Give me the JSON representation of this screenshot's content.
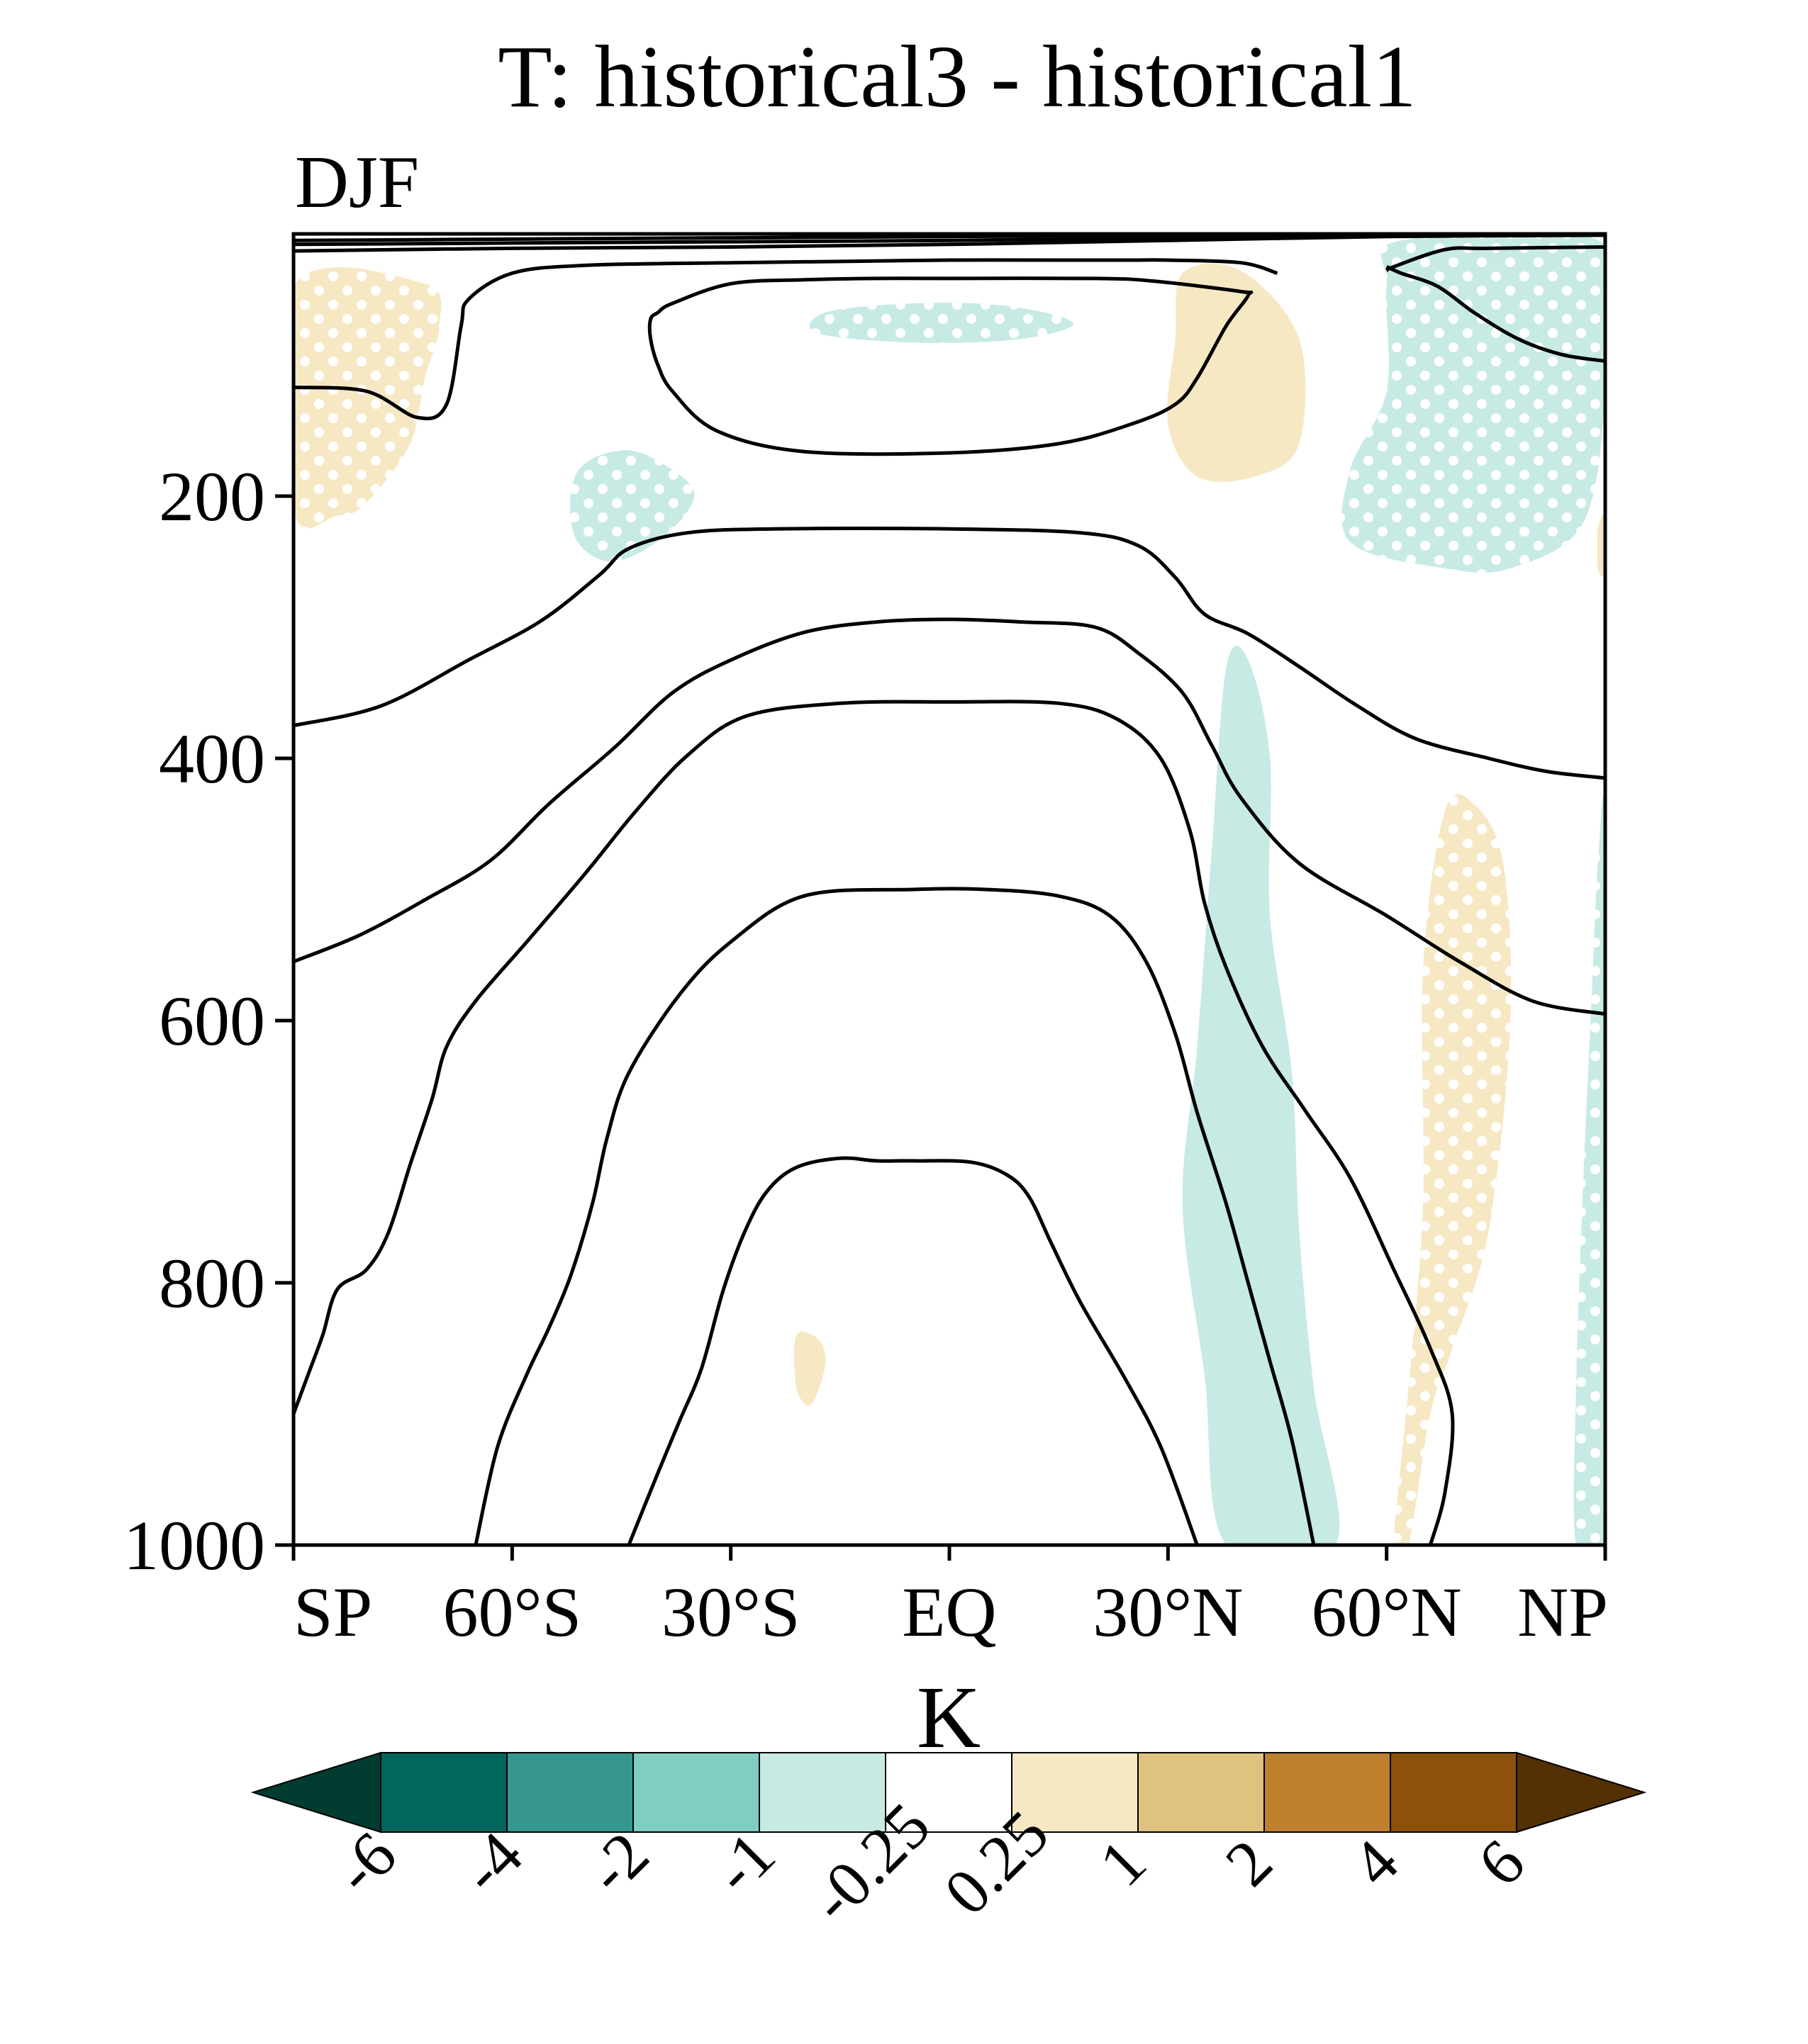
{
  "chart_data": {
    "type": "contour",
    "title": "T: historical3 - historical1",
    "subtitle": "DJF",
    "xlabel": "",
    "ylabel": "",
    "x_ticks": [
      {
        "value": -90,
        "label": "SP"
      },
      {
        "value": -60,
        "label": "60°S"
      },
      {
        "value": -30,
        "label": "30°S"
      },
      {
        "value": 0,
        "label": "EQ"
      },
      {
        "value": 30,
        "label": "30°N"
      },
      {
        "value": 60,
        "label": "60°N"
      },
      {
        "value": 90,
        "label": "NP"
      }
    ],
    "xlim": [
      -90,
      90
    ],
    "y_ticks": [
      {
        "value": 200,
        "label": "200"
      },
      {
        "value": 400,
        "label": "400"
      },
      {
        "value": 600,
        "label": "600"
      },
      {
        "value": 800,
        "label": "800"
      },
      {
        "value": 1000,
        "label": "1000"
      }
    ],
    "ylim": [
      0,
      1000
    ],
    "y_inverted": true,
    "grid": false,
    "colorbar": {
      "label": "K",
      "levels": [
        "-6",
        "-4",
        "-2",
        "-1",
        "-0.25",
        "0.25",
        "1",
        "2",
        "4",
        "6"
      ],
      "colors": [
        "#003c30",
        "#01665e",
        "#35978f",
        "#80cdc1",
        "#c7eae5",
        "#ffffff",
        "#f6e8c3",
        "#dfc27d",
        "#bf812d",
        "#8c510a",
        "#543005"
      ]
    },
    "shaded_regions": [
      {
        "color": "#f6e8c3",
        "stippled": true,
        "points": [
          [
            -90,
            40
          ],
          [
            -72,
            38
          ],
          [
            -70,
            70
          ],
          [
            -72,
            110
          ],
          [
            -74,
            160
          ],
          [
            -80,
            205
          ],
          [
            -84,
            215
          ],
          [
            -90,
            210
          ]
        ]
      },
      {
        "color": "#c7eae5",
        "stippled": true,
        "points": [
          [
            -50,
            175
          ],
          [
            -44,
            165
          ],
          [
            -38,
            180
          ],
          [
            -35,
            200
          ],
          [
            -39,
            230
          ],
          [
            -46,
            250
          ],
          [
            -51,
            235
          ],
          [
            -52,
            200
          ]
        ]
      },
      {
        "color": "#c7eae5",
        "stippled": true,
        "points": [
          [
            -17,
            60
          ],
          [
            -5,
            53
          ],
          [
            8,
            55
          ],
          [
            17,
            68
          ],
          [
            10,
            80
          ],
          [
            -4,
            83
          ],
          [
            -18,
            76
          ]
        ]
      },
      {
        "color": "#f6e8c3",
        "stippled": false,
        "points": [
          [
            32,
            30
          ],
          [
            40,
            28
          ],
          [
            48,
            80
          ],
          [
            48,
            160
          ],
          [
            42,
            185
          ],
          [
            34,
            185
          ],
          [
            30,
            145
          ],
          [
            31,
            80
          ]
        ]
      },
      {
        "color": "#c7eae5",
        "stippled": true,
        "points": [
          [
            62,
            5
          ],
          [
            90,
            8
          ],
          [
            90,
            120
          ],
          [
            87,
            220
          ],
          [
            77,
            255
          ],
          [
            68,
            255
          ],
          [
            55,
            235
          ],
          [
            55,
            180
          ],
          [
            60,
            120
          ],
          [
            60,
            40
          ]
        ]
      },
      {
        "color": "#f6e8c3",
        "stippled": false,
        "points": [
          [
            89,
            225
          ],
          [
            90,
            215
          ],
          [
            90,
            258
          ],
          [
            89,
            255
          ]
        ]
      },
      {
        "color": "#c7eae5",
        "stippled": false,
        "points": [
          [
            38,
            330
          ],
          [
            41,
            325
          ],
          [
            44,
            400
          ],
          [
            44,
            520
          ],
          [
            47,
            640
          ],
          [
            48,
            760
          ],
          [
            50,
            880
          ],
          [
            53,
            1000
          ],
          [
            38,
            1000
          ],
          [
            35,
            870
          ],
          [
            32,
            740
          ],
          [
            34,
            620
          ],
          [
            36,
            470
          ]
        ]
      },
      {
        "color": "#f6e8c3",
        "stippled": true,
        "points": [
          [
            68,
            440
          ],
          [
            72,
            435
          ],
          [
            76,
            480
          ],
          [
            77,
            600
          ],
          [
            74,
            760
          ],
          [
            69,
            850
          ],
          [
            66,
            900
          ],
          [
            63,
            1000
          ],
          [
            61,
            1000
          ],
          [
            63,
            880
          ],
          [
            65,
            740
          ],
          [
            65,
            560
          ]
        ]
      },
      {
        "color": "#c7eae5",
        "stippled": true,
        "points": [
          [
            89,
            480
          ],
          [
            90,
            470
          ],
          [
            90,
            1000
          ],
          [
            86,
            1000
          ],
          [
            86,
            880
          ],
          [
            87,
            720
          ],
          [
            88,
            600
          ]
        ]
      },
      {
        "color": "#f6e8c3",
        "stippled": false,
        "points": [
          [
            -21,
            840
          ],
          [
            -18,
            843
          ],
          [
            -17,
            862
          ],
          [
            -19,
            893
          ],
          [
            -21,
            880
          ]
        ]
      }
    ],
    "contour_lines": [
      {
        "points": [
          [
            -90,
            5
          ],
          [
            -60,
            4
          ],
          [
            -30,
            3
          ],
          [
            0,
            2
          ],
          [
            30,
            1
          ],
          [
            60,
            0.5
          ],
          [
            90,
            0.2
          ]
        ]
      },
      {
        "points": [
          [
            -90,
            8
          ],
          [
            -60,
            7
          ],
          [
            -30,
            6
          ],
          [
            0,
            5
          ],
          [
            30,
            3
          ],
          [
            60,
            1
          ],
          [
            90,
            0.5
          ]
        ]
      },
      {
        "points": [
          [
            -90,
            13
          ],
          [
            -60,
            11
          ],
          [
            -30,
            10
          ],
          [
            0,
            8
          ],
          [
            30,
            5
          ],
          [
            60,
            2
          ],
          [
            90,
            1
          ]
        ]
      },
      {
        "points": [
          [
            -90,
            117
          ],
          [
            -80,
            120
          ],
          [
            -73,
            140
          ],
          [
            -69,
            130
          ],
          [
            -67,
            70
          ],
          [
            -66,
            50
          ],
          [
            -60,
            30
          ],
          [
            -50,
            24
          ],
          [
            -30,
            22
          ],
          [
            -15,
            21
          ],
          [
            0,
            20
          ],
          [
            15,
            20
          ],
          [
            25,
            20
          ],
          [
            30,
            20
          ],
          [
            40,
            22
          ],
          [
            45,
            30
          ]
        ]
      },
      {
        "points": [
          [
            -41,
            65
          ],
          [
            -40,
            60
          ],
          [
            -38,
            53
          ],
          [
            -30,
            38
          ],
          [
            -20,
            35
          ],
          [
            -10,
            34
          ],
          [
            0,
            34
          ],
          [
            20,
            34
          ],
          [
            28,
            36
          ],
          [
            40,
            44
          ],
          [
            41,
            47
          ],
          [
            38,
            70
          ],
          [
            34,
            110
          ],
          [
            31,
            130
          ],
          [
            25,
            145
          ],
          [
            15,
            160
          ],
          [
            0,
            167
          ],
          [
            -20,
            166
          ],
          [
            -32,
            150
          ],
          [
            -38,
            120
          ],
          [
            -40,
            100
          ],
          [
            -41,
            80
          ],
          [
            -41,
            65
          ]
        ]
      },
      {
        "points": [
          [
            60,
            25
          ],
          [
            62,
            30
          ],
          [
            67,
            40
          ],
          [
            72,
            60
          ],
          [
            78,
            80
          ],
          [
            84,
            92
          ],
          [
            90,
            97
          ]
        ]
      },
      {
        "points": [
          [
            90,
            10
          ],
          [
            74,
            11
          ],
          [
            68,
            12
          ],
          [
            61,
            25
          ],
          [
            60,
            28
          ]
        ]
      },
      {
        "points": [
          [
            -90,
            375
          ],
          [
            -78,
            360
          ],
          [
            -66,
            325
          ],
          [
            -56,
            295
          ],
          [
            -48,
            260
          ],
          [
            -44,
            240
          ],
          [
            -36,
            228
          ],
          [
            -24,
            225
          ],
          [
            0,
            225
          ],
          [
            18,
            228
          ],
          [
            26,
            238
          ],
          [
            31,
            262
          ],
          [
            35,
            290
          ],
          [
            41,
            305
          ],
          [
            48,
            330
          ],
          [
            56,
            360
          ],
          [
            64,
            385
          ],
          [
            74,
            400
          ],
          [
            82,
            410
          ],
          [
            90,
            415
          ]
        ]
      },
      {
        "points": [
          [
            -90,
            555
          ],
          [
            -81,
            535
          ],
          [
            -72,
            508
          ],
          [
            -63,
            478
          ],
          [
            -55,
            435
          ],
          [
            -46,
            392
          ],
          [
            -38,
            350
          ],
          [
            -30,
            325
          ],
          [
            -20,
            304
          ],
          [
            -10,
            296
          ],
          [
            0,
            294
          ],
          [
            10,
            296
          ],
          [
            20,
            300
          ],
          [
            26,
            320
          ],
          [
            32,
            350
          ],
          [
            36,
            390
          ],
          [
            40,
            430
          ],
          [
            48,
            480
          ],
          [
            60,
            520
          ],
          [
            70,
            555
          ],
          [
            80,
            585
          ],
          [
            90,
            595
          ]
        ]
      },
      {
        "points": [
          [
            -90,
            900
          ],
          [
            -88,
            870
          ],
          [
            -86,
            840
          ],
          [
            -84,
            805
          ],
          [
            -80,
            790
          ],
          [
            -77,
            762
          ],
          [
            -74,
            710
          ],
          [
            -71,
            660
          ],
          [
            -69,
            620
          ],
          [
            -65,
            585
          ],
          [
            -58,
            540
          ],
          [
            -50,
            488
          ],
          [
            -43,
            440
          ],
          [
            -36,
            398
          ],
          [
            -28,
            368
          ],
          [
            -15,
            358
          ],
          [
            0,
            357
          ],
          [
            15,
            358
          ],
          [
            23,
            370
          ],
          [
            29,
            400
          ],
          [
            33,
            455
          ],
          [
            35,
            510
          ],
          [
            38,
            560
          ],
          [
            43,
            620
          ],
          [
            49,
            670
          ],
          [
            55,
            720
          ],
          [
            61,
            790
          ],
          [
            66,
            850
          ],
          [
            69,
            900
          ],
          [
            68,
            960
          ],
          [
            66,
            1000
          ]
        ]
      },
      {
        "points": [
          [
            -65,
            1000
          ],
          [
            -62,
            925
          ],
          [
            -58,
            870
          ],
          [
            -55,
            835
          ],
          [
            -52,
            795
          ],
          [
            -49,
            740
          ],
          [
            -47,
            690
          ],
          [
            -44,
            640
          ],
          [
            -37,
            580
          ],
          [
            -30,
            540
          ],
          [
            -20,
            505
          ],
          [
            -5,
            500
          ],
          [
            5,
            500
          ],
          [
            15,
            505
          ],
          [
            22,
            520
          ],
          [
            27,
            555
          ],
          [
            31,
            610
          ],
          [
            34,
            670
          ],
          [
            38,
            740
          ],
          [
            41,
            800
          ],
          [
            44,
            860
          ],
          [
            47,
            920
          ],
          [
            50,
            1000
          ]
        ]
      },
      {
        "points": [
          [
            -44,
            1000
          ],
          [
            -40,
            945
          ],
          [
            -37,
            905
          ],
          [
            -34,
            865
          ],
          [
            -31,
            805
          ],
          [
            -28,
            760
          ],
          [
            -25,
            730
          ],
          [
            -21,
            712
          ],
          [
            -15,
            705
          ],
          [
            -10,
            707
          ],
          [
            -5,
            707
          ],
          [
            3,
            708
          ],
          [
            8,
            718
          ],
          [
            11,
            735
          ],
          [
            14,
            770
          ],
          [
            18,
            815
          ],
          [
            24,
            872
          ],
          [
            29,
            925
          ],
          [
            34,
            1000
          ]
        ]
      }
    ]
  }
}
